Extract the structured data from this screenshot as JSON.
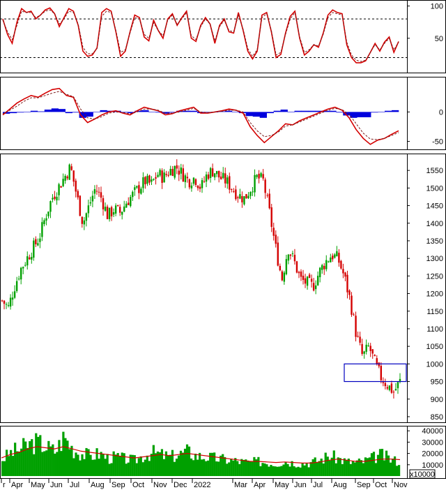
{
  "chart_data": [
    {
      "type": "line",
      "panel": "oscillator",
      "title": "",
      "ylim": [
        0,
        105
      ],
      "yticks": [
        "100",
        "50"
      ],
      "ytick_values": [
        100,
        50
      ],
      "reference_lines": [
        80,
        20
      ],
      "series": [
        {
          "color": "#d40000",
          "values": [
            80,
            56,
            42,
            75,
            96,
            90,
            92,
            80,
            86,
            94,
            97,
            88,
            68,
            82,
            96,
            92,
            70,
            30,
            22,
            24,
            35,
            90,
            96,
            92,
            60,
            22,
            30,
            60,
            86,
            82,
            52,
            46,
            78,
            62,
            50,
            80,
            88,
            70,
            82,
            92,
            50,
            45,
            70,
            82,
            72,
            42,
            70,
            80,
            60,
            58,
            90,
            62,
            30,
            18,
            30,
            86,
            90,
            60,
            20,
            25,
            58,
            84,
            92,
            50,
            24,
            30,
            40,
            36,
            58,
            86,
            94,
            90,
            88,
            40,
            20,
            12,
            12,
            15,
            28,
            42,
            30,
            44,
            52,
            28,
            45
          ]
        },
        {
          "color": "#7a1a1a",
          "dashed": true,
          "values": [
            78,
            60,
            48,
            70,
            92,
            90,
            90,
            82,
            86,
            92,
            94,
            88,
            72,
            80,
            92,
            90,
            72,
            36,
            26,
            26,
            34,
            84,
            92,
            90,
            62,
            28,
            32,
            58,
            82,
            80,
            56,
            50,
            74,
            62,
            54,
            78,
            86,
            72,
            80,
            90,
            54,
            48,
            68,
            80,
            72,
            46,
            68,
            78,
            62,
            60,
            86,
            64,
            34,
            22,
            32,
            82,
            88,
            62,
            24,
            28,
            56,
            80,
            90,
            52,
            28,
            32,
            40,
            38,
            56,
            82,
            90,
            88,
            86,
            44,
            24,
            16,
            14,
            16,
            28,
            40,
            32,
            42,
            50,
            32,
            44
          ]
        }
      ]
    },
    {
      "type": "line",
      "panel": "macd",
      "title": "",
      "ylim": [
        -60,
        55
      ],
      "yticks": [
        "0",
        "-50"
      ],
      "ytick_values": [
        0,
        -50
      ],
      "series": [
        {
          "name": "",
          "color": "#d40000",
          "values": [
            -5,
            5,
            15,
            22,
            28,
            25,
            32,
            38,
            40,
            28,
            25,
            -5,
            -18,
            -12,
            -5,
            0,
            2,
            -2,
            -5,
            2,
            8,
            5,
            2,
            -5,
            -3,
            2,
            5,
            8,
            -2,
            -2,
            0,
            2,
            5,
            3,
            -2,
            -25,
            -40,
            -52,
            -42,
            -32,
            -20,
            -22,
            -15,
            -10,
            -5,
            0,
            5,
            8,
            3,
            -10,
            -30,
            -45,
            -55,
            -48,
            -45,
            -38,
            -32
          ]
        },
        {
          "name": "",
          "color": "#7a1a1a",
          "dashed": true,
          "values": [
            -3,
            3,
            10,
            18,
            24,
            24,
            28,
            32,
            35,
            30,
            26,
            5,
            -10,
            -12,
            -8,
            -2,
            0,
            -1,
            -3,
            0,
            5,
            5,
            3,
            -2,
            -2,
            0,
            3,
            6,
            0,
            -1,
            0,
            1,
            3,
            3,
            0,
            -18,
            -32,
            -42,
            -40,
            -34,
            -24,
            -22,
            -17,
            -12,
            -7,
            -2,
            3,
            6,
            4,
            -4,
            -20,
            -36,
            -46,
            -47,
            -45,
            -40,
            -35
          ]
        }
      ],
      "histogram": [
        -3,
        -2,
        -1,
        0,
        2,
        1,
        4,
        6,
        5,
        -2,
        -1,
        -10,
        -8,
        0,
        3,
        2,
        2,
        -1,
        -2,
        2,
        3,
        0,
        -1,
        -3,
        -1,
        2,
        2,
        2,
        -2,
        -1,
        0,
        1,
        2,
        0,
        -2,
        -7,
        -8,
        -10,
        -2,
        2,
        4,
        0,
        2,
        2,
        2,
        2,
        2,
        2,
        -1,
        -6,
        -10,
        -9,
        -9,
        -1,
        0,
        2,
        3
      ]
    },
    {
      "type": "candlestick",
      "panel": "price",
      "title": "",
      "ylim": [
        840,
        1590
      ],
      "yticks": [
        "1550",
        "1500",
        "1450",
        "1400",
        "1350",
        "1300",
        "1250",
        "1200",
        "1150",
        "1100",
        "1050",
        "1000",
        "950",
        "900",
        "850"
      ],
      "ytick_values": [
        1550,
        1500,
        1450,
        1400,
        1350,
        1300,
        1250,
        1200,
        1150,
        1100,
        1050,
        1000,
        950,
        900,
        850
      ],
      "close_path": [
        1180,
        1160,
        1220,
        1270,
        1300,
        1330,
        1360,
        1420,
        1470,
        1500,
        1530,
        1560,
        1480,
        1400,
        1450,
        1500,
        1470,
        1420,
        1440,
        1430,
        1460,
        1480,
        1500,
        1520,
        1510,
        1540,
        1530,
        1550,
        1560,
        1540,
        1520,
        1530,
        1500,
        1540,
        1550,
        1530,
        1520,
        1500,
        1480,
        1470,
        1500,
        1530,
        1520,
        1430,
        1330,
        1240,
        1330,
        1290,
        1240,
        1230,
        1220,
        1260,
        1290,
        1310,
        1300,
        1250,
        1180,
        1080,
        1020,
        1050,
        1000,
        960,
        940,
        920,
        950
      ],
      "color_up": "#00a000",
      "color_down": "#d40000",
      "highlight_box": {
        "from": 950,
        "to": 1000,
        "color": "#0000c0"
      }
    },
    {
      "type": "bar",
      "panel": "volume",
      "title": "",
      "ylim": [
        0,
        42000
      ],
      "yticks": [
        "40000",
        "30000",
        "20000",
        "10000"
      ],
      "ytick_values": [
        40000,
        30000,
        20000,
        10000
      ],
      "unit_label": "x10000",
      "values": [
        15000,
        21000,
        24000,
        28000,
        30000,
        26000,
        22000,
        35000,
        24000,
        20000,
        18000,
        20000,
        16000,
        17000,
        15000,
        14000,
        18000,
        21000,
        19000,
        17000,
        19000,
        22000,
        18000,
        17000,
        16000,
        15000,
        14000,
        13000,
        12000,
        13000,
        12000,
        11000,
        13000,
        12000,
        11000,
        12000,
        14000,
        18000,
        16000,
        13000,
        12000,
        13000,
        16000,
        19000,
        15000,
        13000
      ],
      "average_values": [
        16000,
        19000,
        21000,
        24000,
        26000,
        25000,
        24000,
        26000,
        24000,
        22000,
        21000,
        20000,
        19000,
        18000,
        17000,
        16000,
        17000,
        18000,
        19000,
        18000,
        19000,
        20000,
        19000,
        18000,
        17000,
        16000,
        15000,
        14000,
        13000,
        13000,
        12500,
        12000,
        12500,
        12000,
        11500,
        11500,
        12500,
        14000,
        15000,
        14000,
        13000,
        13000,
        14000,
        15000,
        15000,
        14500
      ],
      "color": "#00a000",
      "average_color": "#d40000"
    }
  ],
  "x_axis": {
    "labels": [
      "r",
      "Apr",
      "May",
      "Jun",
      "Jul",
      "Aug",
      "Sep",
      "Oct",
      "Nov",
      "Dec",
      "2022",
      "Mar",
      "Apr",
      "May",
      "Jun",
      "Jul",
      "Aug",
      "Sep",
      "Oct",
      "Nov"
    ]
  }
}
